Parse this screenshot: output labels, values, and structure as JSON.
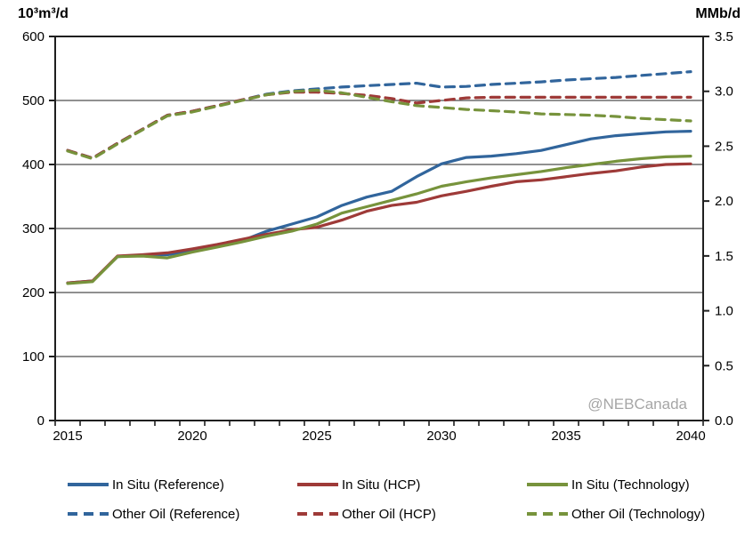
{
  "watermark": "@NEBCanada",
  "chart_data": {
    "type": "line",
    "title": "",
    "left_axis": {
      "title": "10³m³/d",
      "range": [
        0,
        600
      ],
      "tick_values": [
        600,
        500,
        400,
        300,
        200,
        100,
        0
      ],
      "tick_labels": [
        "600",
        "500",
        "400",
        "300",
        "200",
        "100",
        "0"
      ]
    },
    "right_axis": {
      "title": "MMb/d",
      "range": [
        0,
        3.5
      ],
      "tick_values": [
        3.5,
        3.0,
        2.5,
        2.0,
        1.5,
        1.0,
        0.5,
        0.0
      ],
      "tick_labels": [
        "3.5",
        "3.0",
        "2.5",
        "2.0",
        "1.5",
        "1.0",
        "0.5",
        "0.0"
      ]
    },
    "x_axis": {
      "range": [
        2015,
        2040
      ],
      "minor_tick_every_years": 1,
      "labeled_years": [
        2015,
        2020,
        2025,
        2030,
        2035,
        2040
      ],
      "labeled_year_labels": [
        "2015",
        "2020",
        "2025",
        "2030",
        "2035",
        "2040"
      ]
    },
    "grid": "horizontal-only",
    "legend_position": "bottom",
    "years": [
      2015,
      2016,
      2017,
      2018,
      2019,
      2020,
      2021,
      2022,
      2023,
      2024,
      2025,
      2026,
      2027,
      2028,
      2029,
      2030,
      2031,
      2032,
      2033,
      2034,
      2035,
      2036,
      2037,
      2038,
      2039,
      2040
    ],
    "units_note": "values in 10³m³/d (left axis)",
    "series": [
      {
        "name": "In Situ (Reference)",
        "style": "solid",
        "color": "#31659C",
        "values": [
          215,
          218,
          256,
          258,
          259,
          265,
          272,
          281,
          296,
          307,
          318,
          336,
          349,
          358,
          381,
          401,
          411,
          413,
          417,
          422,
          431,
          440,
          445,
          448,
          451,
          452
        ]
      },
      {
        "name": "In Situ (HCP)",
        "style": "solid",
        "color": "#9E3A38",
        "values": [
          215,
          218,
          257,
          259,
          262,
          268,
          275,
          283,
          291,
          298,
          302,
          313,
          327,
          336,
          341,
          351,
          358,
          366,
          373,
          376,
          381,
          386,
          390,
          396,
          400,
          401
        ]
      },
      {
        "name": "In Situ (Technology)",
        "style": "solid",
        "color": "#77933C",
        "values": [
          214,
          217,
          256,
          257,
          254,
          263,
          271,
          279,
          288,
          296,
          307,
          324,
          334,
          344,
          354,
          366,
          373,
          379,
          384,
          389,
          395,
          400,
          405,
          409,
          412,
          413
        ]
      },
      {
        "name": "Other Oil (Reference)",
        "style": "dashed",
        "color": "#31659C",
        "values": [
          422,
          410,
          433,
          455,
          477,
          483,
          492,
          501,
          510,
          515,
          518,
          521,
          523,
          525,
          527,
          521,
          522,
          525,
          527,
          529,
          532,
          534,
          536,
          539,
          542,
          545
        ]
      },
      {
        "name": "Other Oil (HCP)",
        "style": "dashed",
        "color": "#9E3A38",
        "values": [
          422,
          410,
          433,
          455,
          477,
          483,
          492,
          501,
          509,
          513,
          513,
          511,
          508,
          503,
          496,
          500,
          504,
          505,
          505,
          505,
          505,
          505,
          505,
          505,
          505,
          505
        ]
      },
      {
        "name": "Other Oil (Technology)",
        "style": "dashed",
        "color": "#77933C",
        "values": [
          421,
          409,
          432,
          454,
          476,
          482,
          491,
          500,
          509,
          514,
          516,
          512,
          505,
          498,
          492,
          489,
          486,
          484,
          482,
          479,
          478,
          477,
          475,
          472,
          470,
          468
        ]
      }
    ]
  },
  "colors": {
    "axis_box": "#1f1f1f",
    "gridline": "#4d4d4d",
    "tick_text": "#000000",
    "watermark": "#A6A6A6"
  }
}
